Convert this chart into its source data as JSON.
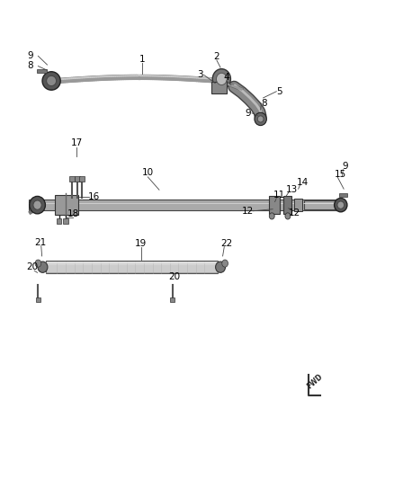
{
  "bg_color": "#ffffff",
  "line_color": "#555555",
  "dark_color": "#222222",
  "label_color": "#000000",
  "fs": 7.5,
  "rod_color": "#aaaaaa",
  "rod_edge": "#444444",
  "joint_color": "#666666",
  "joint_edge": "#222222",
  "joint_inner": "#999999",
  "clamp_color": "#888888",
  "clamp_edge": "#333333",
  "leader_color": "#444444"
}
